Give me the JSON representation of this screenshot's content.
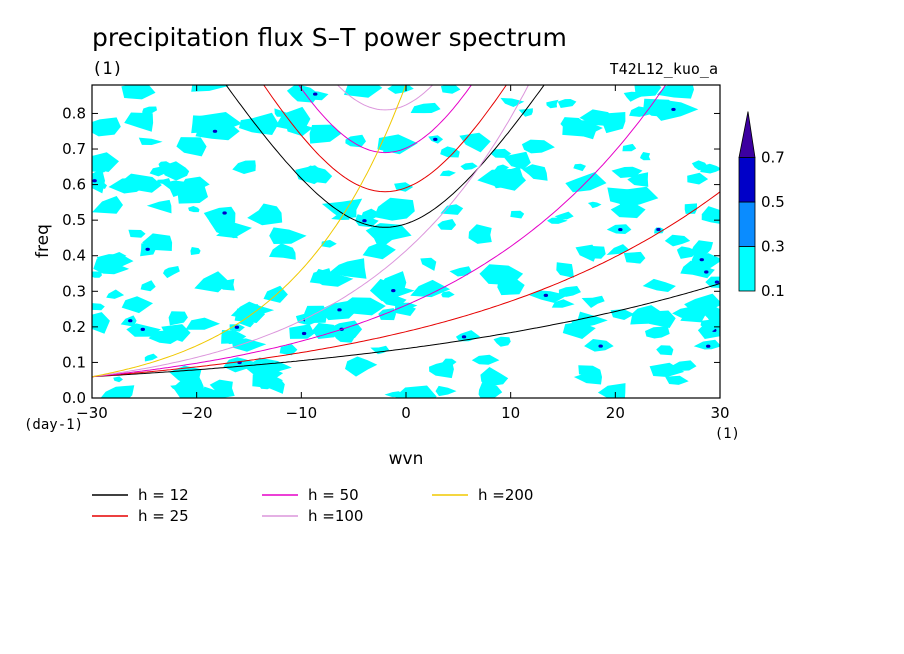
{
  "chart_data": {
    "type": "contour",
    "title": "precipitation flux S–T power spectrum",
    "units_label": "(1)",
    "experiment": "T42L12_kuo_a",
    "xlabel": "wvn",
    "ylabel": "freq",
    "x_unit": "(1)",
    "y_unit": "(day-1)",
    "xlim": [
      -30,
      30
    ],
    "ylim": [
      0,
      0.88
    ],
    "x_ticks": [
      -30,
      -20,
      -10,
      0,
      10,
      20,
      30
    ],
    "y_ticks": [
      0.0,
      0.1,
      0.2,
      0.3,
      0.4,
      0.5,
      0.6,
      0.7,
      0.8
    ],
    "x_tick_labels": [
      "−30",
      "−20",
      "−10",
      "0",
      "10",
      "20",
      "30"
    ],
    "y_tick_labels": [
      "0.0",
      "0.1",
      "0.2",
      "0.3",
      "0.4",
      "0.5",
      "0.6",
      "0.7",
      "0.8"
    ],
    "colorbar": {
      "levels": [
        "0.1",
        "0.3",
        "0.5",
        "0.7"
      ],
      "colors": [
        "#00ffff",
        "#0a8cff",
        "#0000c8",
        "#3c00a0"
      ]
    },
    "series": [
      {
        "name": "h = 12",
        "color": "#000000"
      },
      {
        "name": "h = 25",
        "color": "#e60000"
      },
      {
        "name": "h = 50",
        "color": "#e600c8"
      },
      {
        "name": "h =100",
        "color": "#dc96dc"
      },
      {
        "name": "h =200",
        "color": "#f0c800"
      }
    ],
    "minima": {
      "h = 12": {
        "x": -2,
        "y": 0.48
      },
      "h = 25": {
        "x": -2,
        "y": 0.58
      },
      "h = 50": {
        "x": -2,
        "y": 0.69
      },
      "h =100": {
        "x": -2,
        "y": 0.81
      }
    }
  }
}
